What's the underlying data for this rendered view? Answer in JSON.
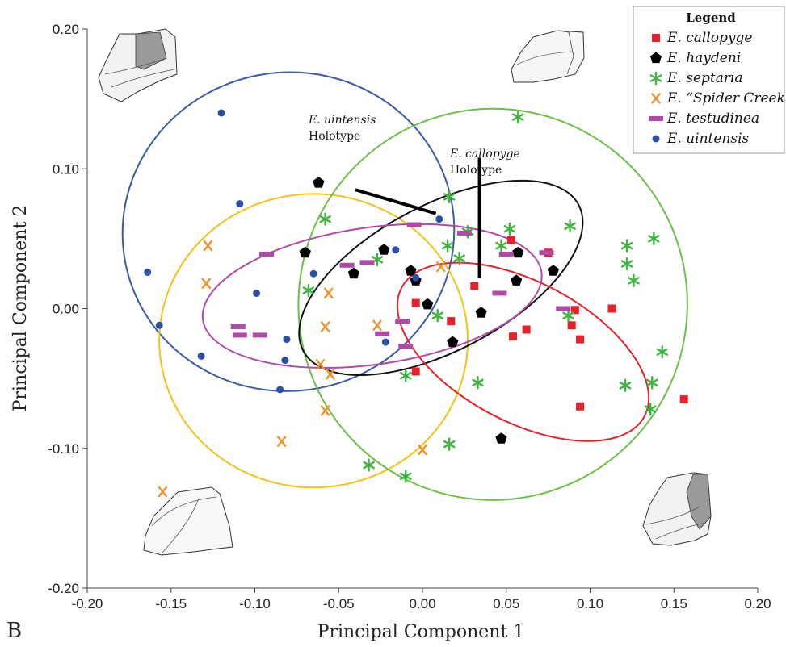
{
  "chart_data": {
    "type": "scatter",
    "xlabel": "Principal Component 1",
    "ylabel": "Principal Component 2",
    "xlim": [
      -0.2,
      0.2
    ],
    "ylim": [
      -0.2,
      0.2
    ],
    "x_ticks": [
      "-0.20",
      "-0.15",
      "-0.10",
      "-0.05",
      "0.00",
      "0.05",
      "0.10",
      "0.15",
      "0.20"
    ],
    "y_ticks": [
      "0.20",
      "0.10",
      "0.00",
      "-0.10",
      "-0.20"
    ],
    "panel_label": "B",
    "legend": {
      "title": "Legend",
      "placement": "top-right"
    },
    "series": [
      {
        "name": "E. callopyge",
        "marker": "square",
        "color": "#e8202a",
        "points": [
          [
            0.053,
            0.049
          ],
          [
            0.075,
            0.04
          ],
          [
            0.031,
            0.016
          ],
          [
            -0.004,
            0.004
          ],
          [
            0.017,
            -0.009
          ],
          [
            0.091,
            -0.001
          ],
          [
            0.113,
            0.0
          ],
          [
            0.089,
            -0.012
          ],
          [
            0.062,
            -0.015
          ],
          [
            0.054,
            -0.02
          ],
          [
            0.094,
            -0.022
          ],
          [
            -0.004,
            -0.045
          ],
          [
            0.094,
            -0.07
          ],
          [
            0.156,
            -0.065
          ]
        ]
      },
      {
        "name": "E. haydeni",
        "marker": "pentagon",
        "color": "#000000",
        "points": [
          [
            -0.062,
            0.09
          ],
          [
            -0.07,
            0.04
          ],
          [
            -0.041,
            0.025
          ],
          [
            -0.023,
            0.042
          ],
          [
            -0.007,
            0.027
          ],
          [
            -0.004,
            0.02
          ],
          [
            0.003,
            0.003
          ],
          [
            0.057,
            0.04
          ],
          [
            0.056,
            0.02
          ],
          [
            0.078,
            0.027
          ],
          [
            0.035,
            -0.003
          ],
          [
            0.018,
            -0.024
          ],
          [
            0.047,
            -0.093
          ]
        ]
      },
      {
        "name": "E. septaria",
        "marker": "asterisk",
        "color": "#3cb53c",
        "points": [
          [
            0.057,
            0.137
          ],
          [
            0.016,
            0.08
          ],
          [
            -0.058,
            0.064
          ],
          [
            0.027,
            0.055
          ],
          [
            0.052,
            0.057
          ],
          [
            0.088,
            0.059
          ],
          [
            0.122,
            0.045
          ],
          [
            0.138,
            0.05
          ],
          [
            0.015,
            0.045
          ],
          [
            0.047,
            0.045
          ],
          [
            0.022,
            0.036
          ],
          [
            -0.027,
            0.035
          ],
          [
            0.122,
            0.032
          ],
          [
            0.126,
            0.02
          ],
          [
            -0.068,
            0.013
          ],
          [
            0.009,
            -0.005
          ],
          [
            0.087,
            -0.005
          ],
          [
            0.143,
            -0.031
          ],
          [
            0.121,
            -0.055
          ],
          [
            0.137,
            -0.053
          ],
          [
            0.136,
            -0.072
          ],
          [
            0.033,
            -0.053
          ],
          [
            -0.01,
            -0.048
          ],
          [
            0.016,
            -0.097
          ],
          [
            -0.032,
            -0.112
          ],
          [
            -0.01,
            -0.12
          ]
        ]
      },
      {
        "name": "E. “Spider Creek",
        "marker": "x",
        "color": "#f0922a",
        "points": [
          [
            -0.128,
            0.045
          ],
          [
            -0.129,
            0.018
          ],
          [
            -0.056,
            0.011
          ],
          [
            0.011,
            0.03
          ],
          [
            -0.058,
            -0.013
          ],
          [
            -0.027,
            -0.012
          ],
          [
            -0.061,
            -0.04
          ],
          [
            -0.055,
            -0.047
          ],
          [
            -0.058,
            -0.073
          ],
          [
            -0.084,
            -0.095
          ],
          [
            0.0,
            -0.101
          ],
          [
            -0.155,
            -0.131
          ]
        ]
      },
      {
        "name": "E. testudinea",
        "marker": "bar",
        "color": "#b04aa8",
        "points": [
          [
            -0.093,
            0.039
          ],
          [
            -0.045,
            0.031
          ],
          [
            -0.033,
            0.033
          ],
          [
            -0.005,
            0.06
          ],
          [
            0.025,
            0.054
          ],
          [
            0.05,
            0.039
          ],
          [
            0.074,
            0.04
          ],
          [
            0.046,
            0.011
          ],
          [
            0.084,
            0.0
          ],
          [
            -0.11,
            -0.013
          ],
          [
            -0.109,
            -0.019
          ],
          [
            -0.097,
            -0.019
          ],
          [
            -0.024,
            -0.018
          ],
          [
            -0.012,
            -0.009
          ],
          [
            -0.01,
            -0.027
          ]
        ]
      },
      {
        "name": "E. uintensis",
        "marker": "circle",
        "color": "#2a4fa8",
        "points": [
          [
            -0.12,
            0.14
          ],
          [
            -0.109,
            0.075
          ],
          [
            0.01,
            0.064
          ],
          [
            -0.016,
            0.042
          ],
          [
            -0.065,
            0.025
          ],
          [
            -0.164,
            0.026
          ],
          [
            -0.099,
            0.011
          ],
          [
            -0.004,
            0.022
          ],
          [
            -0.157,
            -0.012
          ],
          [
            -0.081,
            -0.022
          ],
          [
            -0.022,
            -0.024
          ],
          [
            -0.132,
            -0.034
          ],
          [
            -0.082,
            -0.037
          ],
          [
            -0.085,
            -0.058
          ]
        ]
      }
    ],
    "ellipses": [
      {
        "series": "E. uintensis",
        "color": "#3a5aa8",
        "cx": -0.08,
        "cy": 0.055,
        "rx": 0.099,
        "ry": 0.114,
        "angle_deg": -8
      },
      {
        "series": "E. “Spider Creek",
        "color": "#f2c21a",
        "cx": -0.065,
        "cy": -0.023,
        "rx": 0.092,
        "ry": 0.105,
        "angle_deg": 0
      },
      {
        "series": "E. septaria",
        "color": "#6cc04a",
        "cx": 0.042,
        "cy": 0.003,
        "rx": 0.116,
        "ry": 0.14,
        "angle_deg": 5
      },
      {
        "series": "E. haydeni",
        "color": "#111111",
        "cx": 0.011,
        "cy": 0.022,
        "rx": 0.093,
        "ry": 0.052,
        "angle_deg": -28
      },
      {
        "series": "E. testudinea",
        "color": "#b04aa8",
        "cx": -0.03,
        "cy": 0.009,
        "rx": 0.102,
        "ry": 0.049,
        "angle_deg": -8
      },
      {
        "series": "E. callopyge",
        "color": "#e8202a",
        "cx": 0.06,
        "cy": -0.031,
        "rx": 0.082,
        "ry": 0.05,
        "angle_deg": 28
      }
    ],
    "annotations": [
      {
        "name": "E. uintensis",
        "label": "Holotype",
        "pointer_from": [
          -0.04,
          0.085
        ],
        "pointer_to": [
          0.008,
          0.068
        ]
      },
      {
        "name": "E. callopyge",
        "label": "Holotype",
        "pointer_from": [
          0.034,
          0.108
        ],
        "pointer_to": [
          0.034,
          0.022
        ]
      }
    ]
  }
}
